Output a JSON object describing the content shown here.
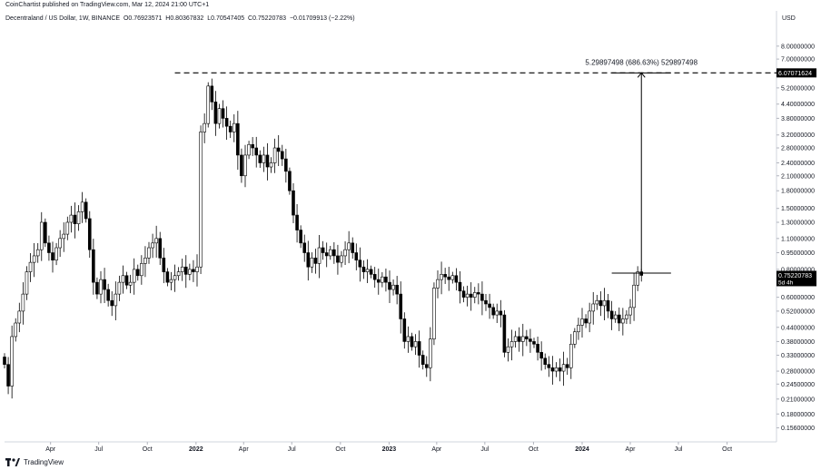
{
  "header": {
    "published_text": "CoinChartist published on TradingView.com, Mar 12, 2024 21:00 UTC+1"
  },
  "symbol_line": {
    "name": "Decentraland / US Dollar, 1W, BINANCE",
    "open_label": "O",
    "open": "0.76923571",
    "high_label": "H",
    "high": "0.80367832",
    "low_label": "L",
    "low": "0.70547405",
    "close_label": "C",
    "close": "0.75220783",
    "change": "−0.01709913 (−2.22%)"
  },
  "currency": "USD",
  "footer": {
    "brand": "TradingView"
  },
  "colors": {
    "candle": "#000000",
    "up_fill": "#ffffff",
    "down_fill": "#000000",
    "grid": "#f0f3fa",
    "text": "#131722"
  },
  "chart_data": {
    "type": "candlestick",
    "y_scale": "log",
    "ylim": [
      0.135,
      10
    ],
    "y_ticks": [
      {
        "value": 8.0,
        "label": "8.00000000"
      },
      {
        "value": 7.0,
        "label": "7.00000000"
      },
      {
        "value": 5.2,
        "label": "5.20000000"
      },
      {
        "value": 4.4,
        "label": "4.40000000"
      },
      {
        "value": 3.8,
        "label": "3.80000000"
      },
      {
        "value": 3.2,
        "label": "3.20000000"
      },
      {
        "value": 2.8,
        "label": "2.80000000"
      },
      {
        "value": 2.4,
        "label": "2.40000000"
      },
      {
        "value": 2.1,
        "label": "2.10000000"
      },
      {
        "value": 1.8,
        "label": "1.80000000"
      },
      {
        "value": 1.5,
        "label": "1.50000000"
      },
      {
        "value": 1.3,
        "label": "1.30000000"
      },
      {
        "value": 1.1,
        "label": "1.10000000"
      },
      {
        "value": 0.95,
        "label": "0.95000000"
      },
      {
        "value": 0.8,
        "label": "0.80000000"
      },
      {
        "value": 0.6,
        "label": "0.60000000"
      },
      {
        "value": 0.52,
        "label": "0.52000000"
      },
      {
        "value": 0.44,
        "label": "0.44000000"
      },
      {
        "value": 0.38,
        "label": "0.38000000"
      },
      {
        "value": 0.33,
        "label": "0.33000000"
      },
      {
        "value": 0.28,
        "label": "0.28000000"
      },
      {
        "value": 0.245,
        "label": "0.24500000"
      },
      {
        "value": 0.21,
        "label": "0.21000000"
      },
      {
        "value": 0.18,
        "label": "0.18000000"
      },
      {
        "value": 0.156,
        "label": "0.15600000"
      }
    ],
    "x_range": [
      "2021-01-04",
      "2024-12-30"
    ],
    "x_ticks": [
      {
        "date": "2021-04-01",
        "label": "Apr",
        "bold": false
      },
      {
        "date": "2021-07-01",
        "label": "Jul",
        "bold": false
      },
      {
        "date": "2021-10-01",
        "label": "Oct",
        "bold": false
      },
      {
        "date": "2022-01-01",
        "label": "2022",
        "bold": true
      },
      {
        "date": "2022-04-01",
        "label": "Apr",
        "bold": false
      },
      {
        "date": "2022-07-01",
        "label": "Jul",
        "bold": false
      },
      {
        "date": "2022-10-01",
        "label": "Oct",
        "bold": false
      },
      {
        "date": "2023-01-01",
        "label": "2023",
        "bold": true
      },
      {
        "date": "2023-04-01",
        "label": "Apr",
        "bold": false
      },
      {
        "date": "2023-07-01",
        "label": "Jul",
        "bold": false
      },
      {
        "date": "2023-10-01",
        "label": "Oct",
        "bold": false
      },
      {
        "date": "2024-01-01",
        "label": "2024",
        "bold": true
      },
      {
        "date": "2024-04-01",
        "label": "Apr",
        "bold": false
      },
      {
        "date": "2024-07-01",
        "label": "Jul",
        "bold": false
      },
      {
        "date": "2024-10-01",
        "label": "Oct",
        "bold": false
      }
    ],
    "start_date": "2021-01-04",
    "interval_days": 7,
    "price_path": [
      0.3,
      0.24,
      0.4,
      0.46,
      0.52,
      0.62,
      0.78,
      0.86,
      0.92,
      0.98,
      1.3,
      1.05,
      0.95,
      0.88,
      1.0,
      1.1,
      1.15,
      1.3,
      1.4,
      1.28,
      1.45,
      1.6,
      1.35,
      0.98,
      0.7,
      0.62,
      0.72,
      0.65,
      0.58,
      0.55,
      0.62,
      0.7,
      0.75,
      0.68,
      0.7,
      0.8,
      0.75,
      0.85,
      0.9,
      1.0,
      1.05,
      1.1,
      0.9,
      0.78,
      0.7,
      0.72,
      0.75,
      0.78,
      0.82,
      0.76,
      0.8,
      0.78,
      0.82,
      3.3,
      3.6,
      5.3,
      4.5,
      3.6,
      4.2,
      3.8,
      3.5,
      3.3,
      3.6,
      2.6,
      2.1,
      2.6,
      2.9,
      2.8,
      2.6,
      2.4,
      2.6,
      2.3,
      2.4,
      2.8,
      2.7,
      2.5,
      2.2,
      1.8,
      1.4,
      1.2,
      1.05,
      0.95,
      0.82,
      0.9,
      0.85,
      1.0,
      0.95,
      0.92,
      0.98,
      0.92,
      0.86,
      0.92,
      0.98,
      1.05,
      0.95,
      0.88,
      0.82,
      0.78,
      0.8,
      0.76,
      0.72,
      0.7,
      0.74,
      0.7,
      0.65,
      0.68,
      0.62,
      0.48,
      0.38,
      0.4,
      0.36,
      0.38,
      0.33,
      0.3,
      0.29,
      0.39,
      0.66,
      0.72,
      0.76,
      0.74,
      0.72,
      0.75,
      0.7,
      0.64,
      0.6,
      0.62,
      0.6,
      0.63,
      0.62,
      0.58,
      0.56,
      0.54,
      0.5,
      0.52,
      0.5,
      0.34,
      0.36,
      0.38,
      0.4,
      0.38,
      0.4,
      0.39,
      0.38,
      0.37,
      0.34,
      0.32,
      0.3,
      0.29,
      0.28,
      0.29,
      0.28,
      0.3,
      0.29,
      0.37,
      0.42,
      0.45,
      0.48,
      0.46,
      0.52,
      0.56,
      0.58,
      0.55,
      0.58,
      0.52,
      0.48,
      0.5,
      0.46,
      0.48,
      0.5,
      0.54,
      0.68,
      0.78,
      0.752
    ],
    "annotations": {
      "resistance_level": {
        "value": 6.07071624,
        "label": "6.07071624",
        "from_date": "2021-11-22"
      },
      "target_measure": {
        "text": "5.29897498 (686.63%) 529897498",
        "from_value": 0.77,
        "to_value": 6.07071624,
        "from_date": "2024-02-26",
        "to_date": "2024-06-17"
      },
      "current_price": {
        "value": 0.75220783,
        "label": "0.75220783",
        "countdown": "5d 4h"
      }
    }
  }
}
